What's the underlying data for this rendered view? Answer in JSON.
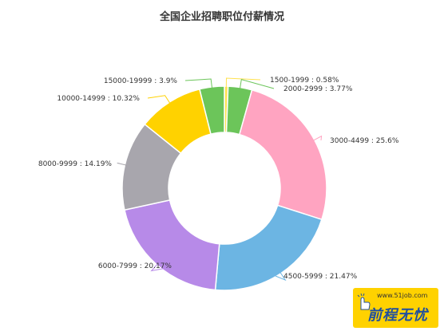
{
  "chart_data": {
    "type": "pie",
    "title": "全国企业招聘职位付薪情况",
    "donut": true,
    "slices": [
      {
        "label": "1500-1999 : 0.58%",
        "value": 0.58,
        "color": "#ffe14d"
      },
      {
        "label": "2000-2999 : 3.77%",
        "value": 3.77,
        "color": "#6cc55a"
      },
      {
        "label": "3000-4499 : 25.6%",
        "value": 25.6,
        "color": "#ffa4c1"
      },
      {
        "label": "4500-5999 : 21.47%",
        "value": 21.47,
        "color": "#6cb5e3"
      },
      {
        "label": "6000-7999 : 20.17%",
        "value": 20.17,
        "color": "#b78ae8"
      },
      {
        "label": "8000-9999 : 14.19%",
        "value": 14.19,
        "color": "#a8a6ad"
      },
      {
        "label": "10000-14999 : 10.32%",
        "value": 10.32,
        "color": "#ffd200"
      },
      {
        "label": "15000-19999 : 3.9%",
        "value": 3.9,
        "color": "#6cc55a"
      }
    ]
  },
  "brand": {
    "url": "www.51job.com",
    "name": "前程无忧"
  }
}
